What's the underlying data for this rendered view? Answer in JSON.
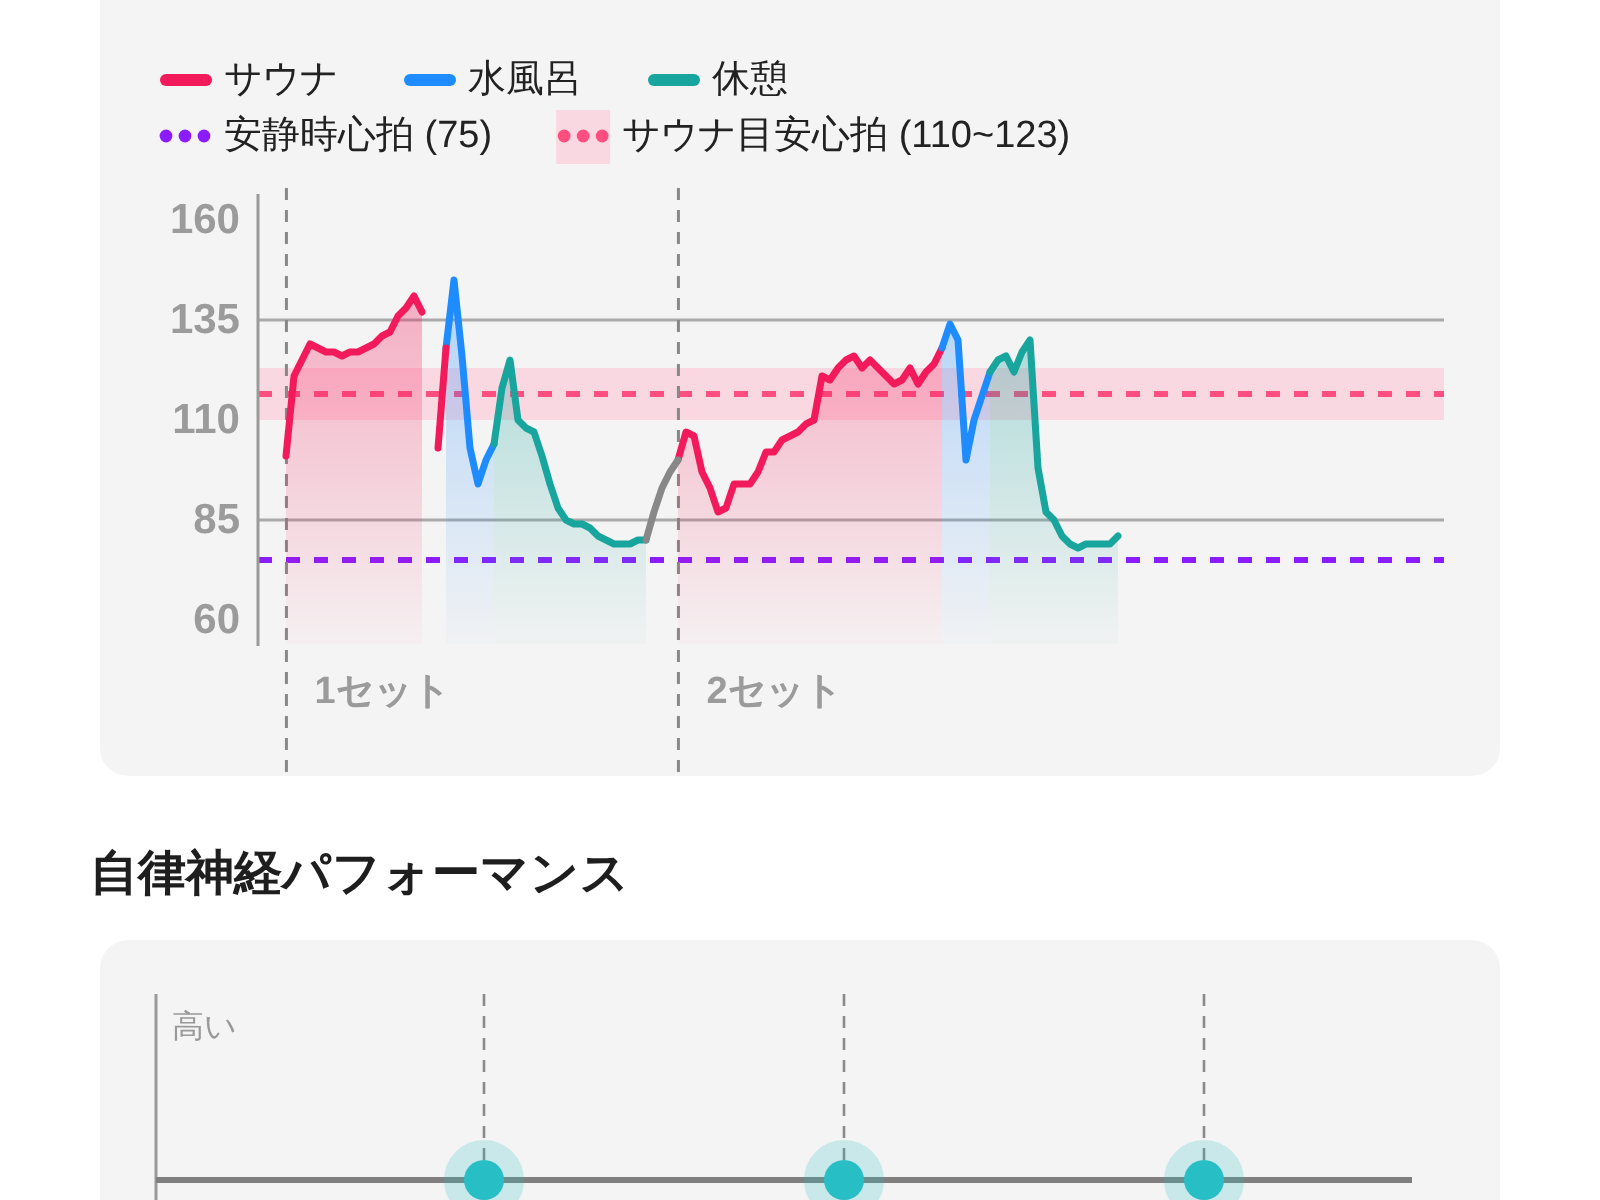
{
  "chart_data": [
    {
      "type": "line",
      "categories": [
        null,
        null,
        null,
        null,
        null,
        null,
        null,
        null,
        null,
        null,
        null,
        null,
        "1セット",
        null,
        null,
        null,
        null,
        null,
        null,
        null,
        null,
        null,
        null,
        null,
        null,
        null,
        null,
        null,
        null,
        null,
        null,
        null,
        null,
        null,
        null,
        null,
        null,
        null,
        null,
        null,
        null,
        null,
        null,
        null,
        null,
        null,
        null,
        null,
        null,
        null,
        null,
        null,
        null,
        null,
        null,
        null,
        null,
        null,
        null,
        null,
        null,
        "2セット",
        null,
        null,
        null,
        null,
        null,
        null,
        null,
        null,
        null,
        null,
        null,
        null,
        null,
        null,
        null,
        null,
        null,
        null,
        null,
        null,
        null,
        null,
        null,
        null,
        null,
        null,
        null,
        null,
        null,
        null,
        null,
        null,
        null,
        null,
        null,
        null,
        null,
        null,
        null,
        null,
        null,
        null,
        null,
        null,
        null,
        null,
        null,
        null,
        null,
        null,
        null,
        null,
        null,
        null,
        null,
        null,
        null,
        null,
        null,
        null,
        null,
        null,
        null,
        null,
        null,
        null,
        null,
        null,
        null,
        null,
        null,
        null,
        null,
        null,
        null,
        null,
        null,
        null,
        null,
        null,
        null,
        null,
        null
      ],
      "series": [
        {
          "name": "サウナ",
          "type": "area",
          "color": "#f31a5b",
          "values": [
            101,
            121,
            125,
            129,
            128,
            127,
            127,
            126,
            127,
            127,
            128,
            129,
            131,
            132,
            136,
            138,
            141,
            137,
            null,
            null,
            null,
            null,
            null,
            null,
            null,
            null,
            null,
            null,
            null,
            null,
            null,
            null,
            null,
            null,
            null,
            null,
            null,
            null,
            null,
            null,
            null,
            null,
            null,
            null,
            null,
            null,
            null,
            null,
            null,
            100,
            107,
            106,
            97,
            93,
            87,
            88,
            94,
            94,
            94,
            97,
            102,
            102,
            105,
            106,
            107,
            109,
            110,
            121,
            120,
            123,
            125,
            126,
            123,
            125,
            123,
            121,
            119,
            120,
            123,
            119,
            122,
            124,
            128,
            null,
            null,
            null,
            null,
            null,
            null,
            null,
            null,
            null,
            null,
            null,
            null,
            null,
            null,
            null,
            null,
            null,
            null,
            null,
            null,
            null,
            null,
            null,
            null,
            null,
            null,
            null,
            null,
            null,
            null,
            null,
            null,
            null,
            null,
            null,
            null,
            null,
            null,
            null,
            null,
            null,
            null,
            null,
            null,
            null,
            null,
            null,
            null,
            null,
            null,
            null,
            null,
            null,
            null,
            null,
            null,
            null,
            null,
            null,
            null,
            null,
            null
          ]
        },
        {
          "name": "水風呂",
          "type": "area",
          "color": "#1e8cff",
          "values": [
            null,
            null,
            null,
            null,
            null,
            null,
            null,
            null,
            null,
            null,
            null,
            null,
            null,
            null,
            null,
            null,
            null,
            null,
            null,
            null,
            128,
            145,
            126,
            103,
            94,
            100,
            104,
            null,
            null,
            null,
            null,
            null,
            null,
            null,
            null,
            null,
            null,
            null,
            null,
            null,
            null,
            null,
            null,
            null,
            null,
            null,
            null,
            null,
            null,
            null,
            null,
            null,
            null,
            null,
            null,
            null,
            null,
            null,
            null,
            null,
            null,
            null,
            null,
            null,
            null,
            null,
            null,
            null,
            null,
            null,
            null,
            null,
            null,
            null,
            null,
            null,
            null,
            null,
            null,
            null,
            null,
            null,
            128,
            134,
            130,
            100,
            110,
            116,
            122,
            null,
            null,
            null,
            null,
            null,
            null,
            null,
            null,
            null,
            null,
            null,
            null,
            null,
            null,
            null,
            null,
            null,
            null,
            null,
            null,
            null,
            null,
            null,
            null,
            null,
            null,
            null,
            null,
            null,
            null,
            null,
            null,
            null,
            null,
            null,
            null,
            null,
            null,
            null,
            null,
            null,
            null,
            null,
            null,
            null,
            null,
            null,
            null,
            null,
            null,
            null,
            null,
            null,
            null,
            null,
            null
          ]
        },
        {
          "name": "休憩",
          "type": "area",
          "color": "#17a59e",
          "values": [
            null,
            null,
            null,
            null,
            null,
            null,
            null,
            null,
            null,
            null,
            null,
            null,
            null,
            null,
            null,
            null,
            null,
            null,
            null,
            null,
            null,
            null,
            null,
            null,
            null,
            null,
            104,
            118,
            125,
            110,
            108,
            107,
            101,
            94,
            88,
            85,
            84,
            84,
            83,
            81,
            80,
            79,
            79,
            79,
            80,
            80,
            null,
            null,
            null,
            null,
            null,
            null,
            null,
            null,
            null,
            null,
            null,
            null,
            null,
            null,
            null,
            null,
            null,
            null,
            null,
            null,
            null,
            null,
            null,
            null,
            null,
            null,
            null,
            null,
            null,
            null,
            null,
            null,
            null,
            null,
            null,
            null,
            null,
            null,
            null,
            null,
            null,
            null,
            122,
            125,
            126,
            122,
            127,
            130,
            98,
            87,
            85,
            81,
            79,
            78,
            79,
            79,
            79,
            79,
            81,
            null,
            null,
            null,
            null,
            null,
            null,
            null,
            null,
            null,
            null,
            null,
            null,
            null,
            null,
            null,
            null,
            null,
            null,
            null,
            null,
            null,
            null,
            null,
            null,
            null,
            null,
            null,
            null,
            null,
            null,
            null,
            null,
            null,
            null,
            null,
            null,
            null,
            null,
            null,
            null
          ]
        },
        {
          "type": "line",
          "color": "#f31a5b",
          "values": [
            null,
            null,
            null,
            null,
            null,
            null,
            null,
            null,
            null,
            null,
            null,
            null,
            null,
            null,
            null,
            null,
            null,
            null,
            null,
            103,
            128,
            null,
            null,
            null,
            null,
            null,
            null,
            null,
            null,
            null,
            null,
            null,
            null,
            null,
            null,
            null,
            null,
            null,
            null,
            null,
            null,
            null,
            null,
            null,
            null,
            null,
            null,
            null,
            null,
            null,
            null,
            null,
            null,
            null,
            null,
            null,
            null,
            null,
            null,
            null,
            null,
            null,
            null,
            null,
            null,
            null,
            null,
            null,
            null,
            null,
            null,
            null,
            null,
            null,
            null,
            null,
            null,
            null,
            null,
            null,
            null,
            null,
            null,
            null,
            null,
            null,
            null,
            null,
            null,
            null,
            null,
            null,
            null,
            null,
            null,
            null,
            null,
            null,
            null,
            null,
            null,
            null,
            null,
            null,
            null,
            null,
            null,
            null,
            null,
            null,
            null,
            null,
            null,
            null,
            null,
            null,
            null,
            null,
            null,
            null,
            null,
            null,
            null,
            null,
            null,
            null,
            null,
            null,
            null,
            null,
            null,
            null,
            null,
            null,
            null,
            null,
            null,
            null,
            null,
            null,
            null,
            null,
            null,
            null,
            null
          ]
        },
        {
          "type": "line",
          "color": "#888888",
          "values": [
            null,
            null,
            null,
            null,
            null,
            null,
            null,
            null,
            null,
            null,
            null,
            null,
            null,
            null,
            null,
            null,
            null,
            null,
            null,
            null,
            null,
            null,
            null,
            null,
            null,
            null,
            null,
            null,
            null,
            null,
            null,
            null,
            null,
            null,
            null,
            null,
            null,
            null,
            null,
            null,
            null,
            null,
            null,
            null,
            null,
            80,
            87,
            93,
            97,
            100,
            null,
            null,
            null,
            null,
            null,
            null,
            null,
            null,
            null,
            null,
            null,
            null,
            null,
            null,
            null,
            null,
            null,
            null,
            null,
            null,
            null,
            null,
            null,
            null,
            null,
            null,
            null,
            null,
            null,
            null,
            null,
            null,
            null,
            null,
            null,
            null,
            null,
            null,
            null,
            null,
            null,
            null,
            null,
            null,
            null,
            null,
            null,
            null,
            null,
            null,
            null,
            null,
            null,
            null,
            null,
            null,
            null,
            null,
            null,
            null,
            null,
            null,
            null,
            null,
            null,
            null,
            null,
            null,
            null,
            null,
            null,
            null,
            null,
            null,
            null,
            null,
            null,
            null,
            null,
            null,
            null,
            null,
            null,
            null,
            null,
            null,
            null,
            null,
            null,
            null,
            null,
            null,
            null,
            null,
            null
          ]
        }
      ],
      "ylim": [
        54,
        166
      ],
      "yticks": [
        60,
        85,
        110,
        135,
        160
      ],
      "bands": [
        {
          "axis": "y",
          "from": 110,
          "to": 123,
          "color": "#fad8e1"
        }
      ],
      "ref_lines": [
        {
          "axis": "y",
          "value": 135,
          "color": "#aaaaaa",
          "line_style": "solid"
        },
        {
          "axis": "y",
          "value": 85,
          "color": "#aaaaaa",
          "line_style": "solid"
        },
        {
          "axis": "y",
          "value": 75,
          "color": "#8b1cff",
          "line_style": "dashed",
          "label": "安静時心拍 (75)"
        },
        {
          "axis": "y",
          "value": 116.5,
          "color": "#ff4f80",
          "line_style": "dashed",
          "label": "サウナ目安心拍 (110~123)"
        }
      ],
      "legend": "top left"
    },
    {
      "type": "other",
      "title": "自律神経パフォーマンス",
      "annotations": [
        "高い"
      ]
    }
  ]
}
